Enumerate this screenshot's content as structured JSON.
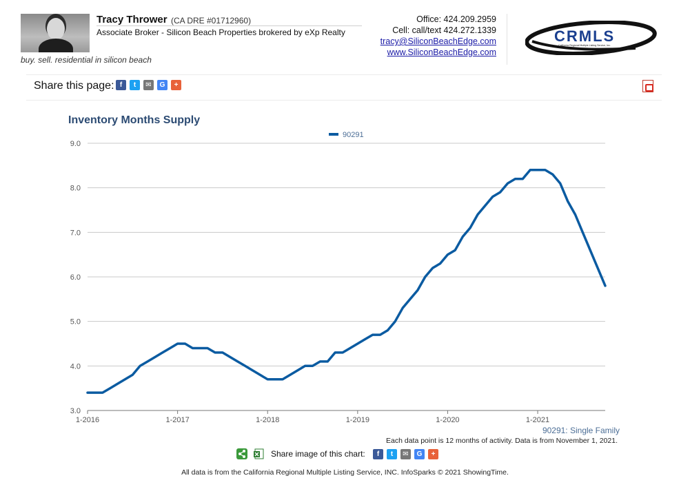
{
  "agent": {
    "name": "Tracy Thrower",
    "dre": "(CA DRE #01712960)",
    "title": "Associate Broker - Silicon Beach Properties brokered by eXp Realty",
    "tagline": "buy. sell. residential in silicon beach"
  },
  "contact": {
    "office": "Office: 424.209.2959",
    "cell": "Cell: call/text 424.272.1339",
    "email": "tracy@SiliconBeachEdge.com",
    "website": "www.SiliconBeachEdge.com"
  },
  "logo": {
    "text": "CRMLS",
    "subtext": "California Regional Multiple Listing Service, Inc."
  },
  "share_page": {
    "label": "Share this page:",
    "icons": [
      {
        "name": "facebook-icon",
        "glyph": "f",
        "color": "#3b5998"
      },
      {
        "name": "twitter-icon",
        "glyph": "t",
        "color": "#1da1f2"
      },
      {
        "name": "email-icon",
        "glyph": "✉",
        "color": "#777777"
      },
      {
        "name": "google-icon",
        "glyph": "G",
        "color": "#4285f4"
      },
      {
        "name": "more-share-icon",
        "glyph": "+",
        "color": "#e8623a"
      }
    ]
  },
  "share_image": {
    "label": "Share image of this chart:",
    "icons": [
      {
        "name": "facebook-icon",
        "glyph": "f",
        "color": "#3b5998"
      },
      {
        "name": "twitter-icon",
        "glyph": "t",
        "color": "#1da1f2"
      },
      {
        "name": "email-icon",
        "glyph": "✉",
        "color": "#777777"
      },
      {
        "name": "google-icon",
        "glyph": "G",
        "color": "#4285f4"
      },
      {
        "name": "more-share-icon",
        "glyph": "+",
        "color": "#e8623a"
      }
    ]
  },
  "series_note": "90291: Single Family",
  "data_note": "Each data point is 12 months of activity. Data is from November 1, 2021.",
  "footer_note": "All data is from the California Regional Multiple Listing Service, INC. InfoSparks © 2021 ShowingTime.",
  "colors": {
    "series": "#0b5ba1",
    "title": "#2c4b73",
    "grid": "#c8c8c8"
  },
  "chart_data": {
    "type": "line",
    "title": "Inventory Months Supply",
    "xlabel": "",
    "ylabel": "",
    "ylim": [
      3.0,
      9.0
    ],
    "yticks": [
      "3.0",
      "4.0",
      "5.0",
      "6.0",
      "7.0",
      "8.0",
      "9.0"
    ],
    "xticks": [
      "1-2016",
      "1-2017",
      "1-2018",
      "1-2019",
      "1-2020",
      "1-2021"
    ],
    "xlim": [
      "2016-01",
      "2021-10"
    ],
    "grid": true,
    "legend": "top-center",
    "series": [
      {
        "name": "90291",
        "color": "#0b5ba1",
        "points": [
          [
            "2016-01",
            3.4
          ],
          [
            "2016-02",
            3.4
          ],
          [
            "2016-03",
            3.4
          ],
          [
            "2016-04",
            3.5
          ],
          [
            "2016-05",
            3.6
          ],
          [
            "2016-06",
            3.7
          ],
          [
            "2016-07",
            3.8
          ],
          [
            "2016-08",
            4.0
          ],
          [
            "2016-09",
            4.1
          ],
          [
            "2016-10",
            4.2
          ],
          [
            "2016-11",
            4.3
          ],
          [
            "2016-12",
            4.4
          ],
          [
            "2017-01",
            4.5
          ],
          [
            "2017-02",
            4.5
          ],
          [
            "2017-03",
            4.4
          ],
          [
            "2017-04",
            4.4
          ],
          [
            "2017-05",
            4.4
          ],
          [
            "2017-06",
            4.3
          ],
          [
            "2017-07",
            4.3
          ],
          [
            "2017-08",
            4.2
          ],
          [
            "2017-09",
            4.1
          ],
          [
            "2017-10",
            4.0
          ],
          [
            "2017-11",
            3.9
          ],
          [
            "2017-12",
            3.8
          ],
          [
            "2018-01",
            3.7
          ],
          [
            "2018-02",
            3.7
          ],
          [
            "2018-03",
            3.7
          ],
          [
            "2018-04",
            3.8
          ],
          [
            "2018-05",
            3.9
          ],
          [
            "2018-06",
            4.0
          ],
          [
            "2018-07",
            4.0
          ],
          [
            "2018-08",
            4.1
          ],
          [
            "2018-09",
            4.1
          ],
          [
            "2018-10",
            4.3
          ],
          [
            "2018-11",
            4.3
          ],
          [
            "2018-12",
            4.4
          ],
          [
            "2019-01",
            4.5
          ],
          [
            "2019-02",
            4.6
          ],
          [
            "2019-03",
            4.7
          ],
          [
            "2019-04",
            4.7
          ],
          [
            "2019-05",
            4.8
          ],
          [
            "2019-06",
            5.0
          ],
          [
            "2019-07",
            5.3
          ],
          [
            "2019-08",
            5.5
          ],
          [
            "2019-09",
            5.7
          ],
          [
            "2019-10",
            6.0
          ],
          [
            "2019-11",
            6.2
          ],
          [
            "2019-12",
            6.3
          ],
          [
            "2020-01",
            6.5
          ],
          [
            "2020-02",
            6.6
          ],
          [
            "2020-03",
            6.9
          ],
          [
            "2020-04",
            7.1
          ],
          [
            "2020-05",
            7.4
          ],
          [
            "2020-06",
            7.6
          ],
          [
            "2020-07",
            7.8
          ],
          [
            "2020-08",
            7.9
          ],
          [
            "2020-09",
            8.1
          ],
          [
            "2020-10",
            8.2
          ],
          [
            "2020-11",
            8.2
          ],
          [
            "2020-12",
            8.4
          ],
          [
            "2021-01",
            8.4
          ],
          [
            "2021-02",
            8.4
          ],
          [
            "2021-03",
            8.3
          ],
          [
            "2021-04",
            8.1
          ],
          [
            "2021-05",
            7.7
          ],
          [
            "2021-06",
            7.4
          ],
          [
            "2021-07",
            7.0
          ],
          [
            "2021-08",
            6.6
          ],
          [
            "2021-09",
            6.2
          ],
          [
            "2021-10",
            5.8
          ]
        ]
      }
    ]
  }
}
